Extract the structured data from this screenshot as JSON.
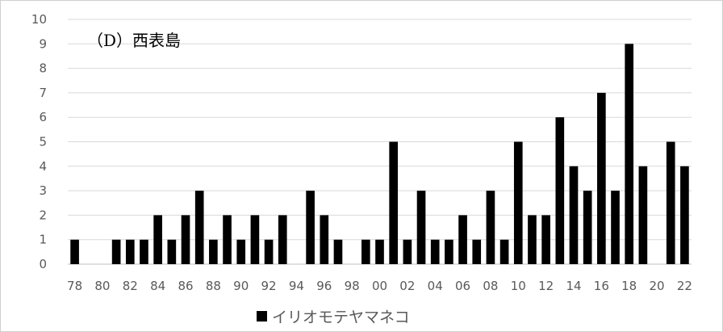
{
  "chart_data": {
    "type": "bar",
    "title": "（D）西表島",
    "categories": [
      "78",
      "79",
      "80",
      "81",
      "82",
      "83",
      "84",
      "85",
      "86",
      "87",
      "88",
      "89",
      "90",
      "91",
      "92",
      "93",
      "94",
      "95",
      "96",
      "97",
      "98",
      "99",
      "00",
      "01",
      "02",
      "03",
      "04",
      "05",
      "06",
      "07",
      "08",
      "09",
      "10",
      "11",
      "12",
      "13",
      "14",
      "15",
      "16",
      "17",
      "18",
      "19",
      "20",
      "21",
      "22"
    ],
    "x_tick_labels": [
      "78",
      "80",
      "82",
      "84",
      "86",
      "88",
      "90",
      "92",
      "94",
      "96",
      "98",
      "00",
      "02",
      "04",
      "06",
      "08",
      "10",
      "12",
      "14",
      "16",
      "18",
      "20",
      "22"
    ],
    "series": [
      {
        "name": "イリオモテヤマネコ",
        "color": "#000000",
        "values": [
          1,
          0,
          0,
          1,
          1,
          1,
          2,
          1,
          2,
          3,
          1,
          2,
          1,
          2,
          1,
          2,
          0,
          3,
          2,
          1,
          0,
          1,
          1,
          5,
          1,
          3,
          1,
          1,
          2,
          1,
          3,
          1,
          5,
          2,
          2,
          6,
          4,
          3,
          7,
          3,
          9,
          4,
          0,
          5,
          4
        ]
      }
    ],
    "xlabel": "",
    "ylabel": "",
    "ylim": [
      0,
      10
    ],
    "yticks": [
      0,
      1,
      2,
      3,
      4,
      5,
      6,
      7,
      8,
      9,
      10
    ],
    "grid": true,
    "legend_position": "bottom"
  }
}
